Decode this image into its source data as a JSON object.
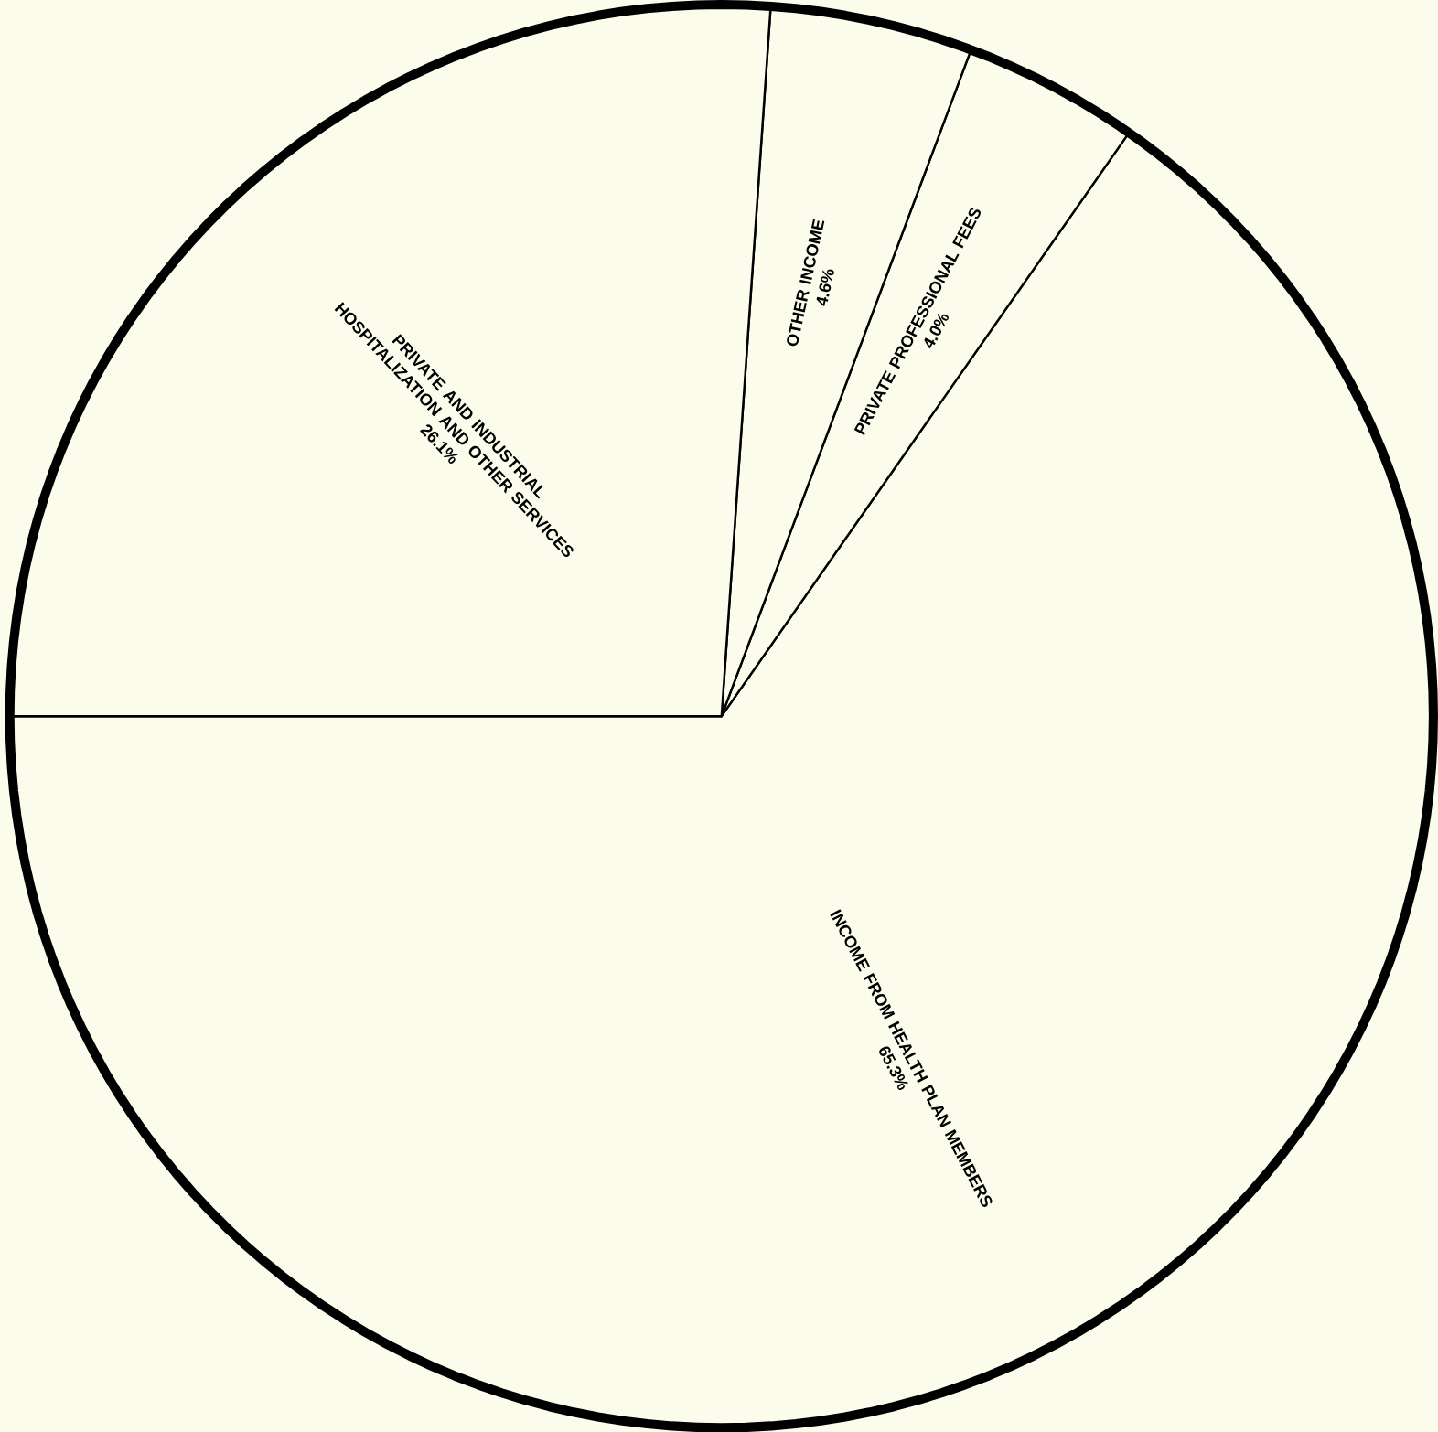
{
  "chart_data": {
    "type": "pie",
    "categories": [
      "INCOME FROM HEALTH PLAN MEMBERS",
      "PRIVATE PROFESSIONAL FEES",
      "OTHER INCOME",
      "PRIVATE AND INDUSTRIAL HOSPITALIZATION AND OTHER SERVICES"
    ],
    "values": [
      65.3,
      4.0,
      4.6,
      26.1
    ],
    "value_labels": [
      "65.3%",
      "4.0%",
      "4.6%",
      "26.1%"
    ],
    "colors": [
      "#fbfcec",
      "#fbfcec",
      "#fbfcec",
      "#fbfcec"
    ]
  }
}
